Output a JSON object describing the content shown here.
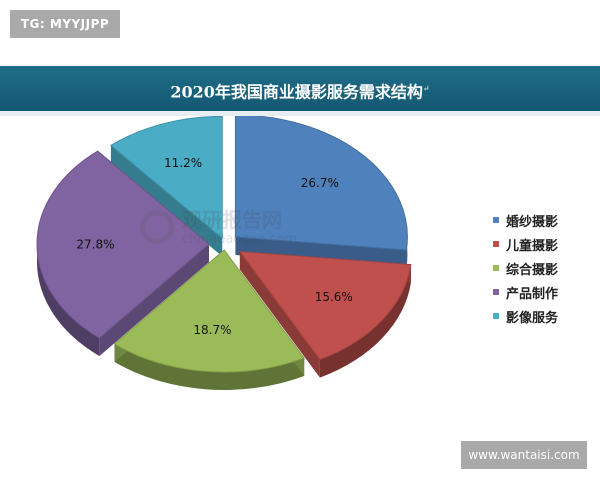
{
  "tags": {
    "top": "TG: MYYJJPP",
    "bottom": "www.wantaisi.com"
  },
  "watermark": {
    "name": "观研报告网",
    "url": "chinabaogao.com"
  },
  "chart_data": {
    "type": "pie",
    "title": "2020年我国商业摄影服务需求结构",
    "title_mark": "↵",
    "legend_position": "right",
    "slices": [
      {
        "label": "婚纱摄影",
        "value": 26.7,
        "value_label": "26.7%",
        "color": "#4f81bd"
      },
      {
        "label": "儿童摄影",
        "value": 15.6,
        "value_label": "15.6%",
        "color": "#c0504d"
      },
      {
        "label": "综合摄影",
        "value": 18.7,
        "value_label": "18.7%",
        "color": "#9bbb59"
      },
      {
        "label": "产品制作",
        "value": 27.8,
        "value_label": "27.8%",
        "color": "#8064a2"
      },
      {
        "label": "影像服务",
        "value": 11.2,
        "value_label": "11.2%",
        "color": "#4bacc6"
      }
    ]
  }
}
